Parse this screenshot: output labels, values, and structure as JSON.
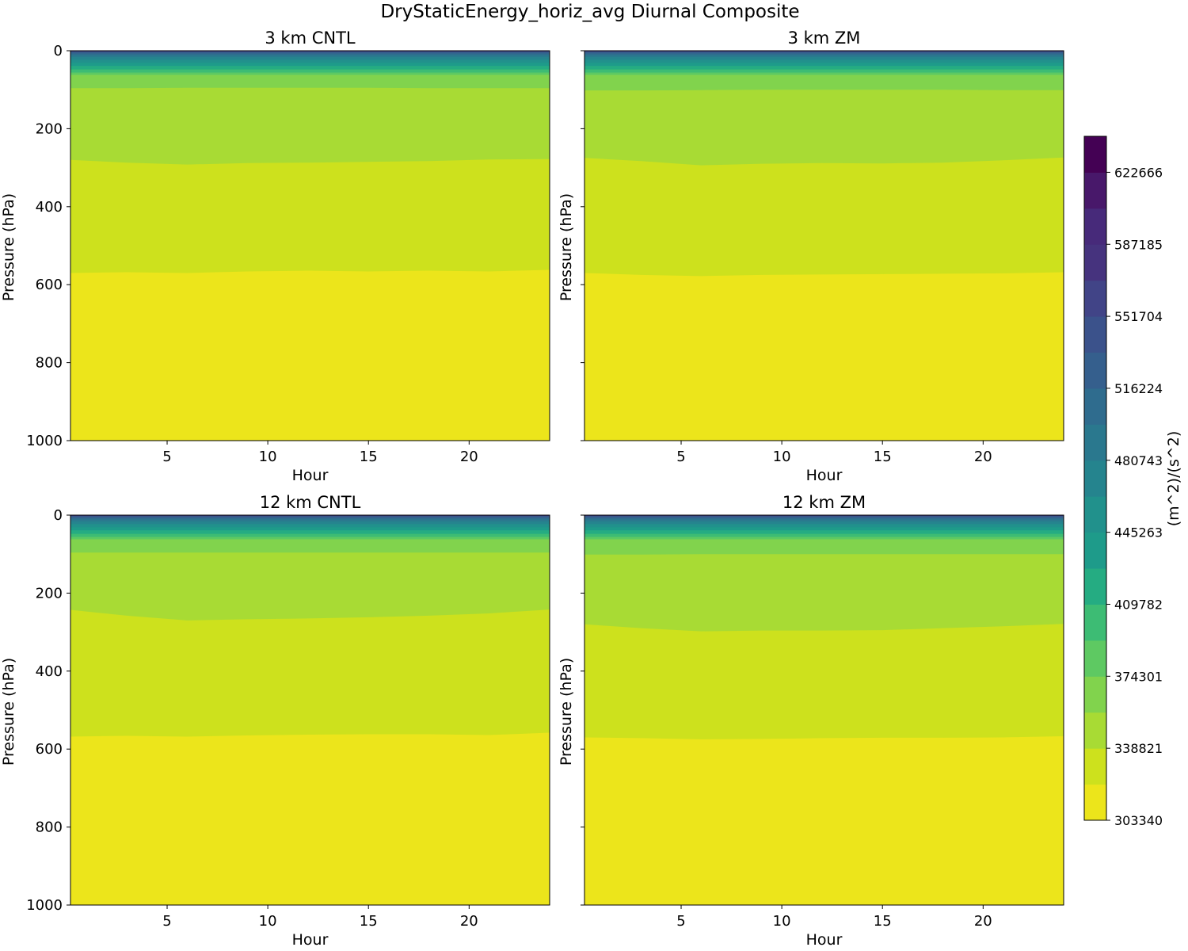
{
  "figure": {
    "title": "DryStaticEnergy_horiz_avg Diurnal Composite"
  },
  "chart_data": {
    "type": "heatmap",
    "title": "DryStaticEnergy_horiz_avg Diurnal Composite",
    "xlabel": "Hour",
    "ylabel": "Pressure (hPa)",
    "xlim": [
      0.2,
      24
    ],
    "ylim": [
      1000,
      0
    ],
    "x_ticks": [
      5,
      10,
      15,
      20
    ],
    "y_ticks": [
      0,
      200,
      400,
      600,
      800,
      1000
    ],
    "hours": [
      0.2,
      3,
      6,
      9,
      12,
      15,
      18,
      21,
      24
    ],
    "colorbar": {
      "label": "(m^2)/(s^2)",
      "min": 303340,
      "max": 640407,
      "step": 17740.4,
      "tick_values": [
        303340,
        338821,
        374301,
        409782,
        445263,
        480743,
        516224,
        551704,
        587185,
        622666
      ],
      "tick_labels": [
        "303340",
        "338821",
        "374301",
        "409782",
        "445263",
        "480743",
        "516224",
        "551704",
        "587185",
        "622666"
      ],
      "colors": [
        "#ece51b",
        "#cde11d",
        "#a8db34",
        "#81d34d",
        "#5ec962",
        "#3dbc74",
        "#25ac82",
        "#1e9b8a",
        "#21918c",
        "#25848e",
        "#2a788e",
        "#2f6c8e",
        "#355f8d",
        "#3b528b",
        "#414487",
        "#46337e",
        "#472a7a",
        "#48186a",
        "#440154"
      ]
    },
    "top_levels": [
      62,
      56,
      48,
      39,
      31,
      23,
      16,
      11,
      7,
      4,
      2
    ],
    "panels": [
      {
        "title": "3 km CNTL",
        "boundary_upper": [
          96,
          96,
          95,
          95,
          95,
          95,
          96,
          96,
          96
        ],
        "boundary_mid": [
          280,
          287,
          292,
          288,
          287,
          285,
          283,
          279,
          278
        ],
        "boundary_low": [
          570,
          568,
          570,
          566,
          564,
          566,
          564,
          566,
          562
        ]
      },
      {
        "title": "3 km ZM",
        "boundary_upper": [
          102,
          102,
          101,
          100,
          100,
          100,
          100,
          101,
          101
        ],
        "boundary_mid": [
          275,
          283,
          294,
          290,
          288,
          289,
          287,
          281,
          274
        ],
        "boundary_low": [
          570,
          575,
          578,
          575,
          574,
          573,
          572,
          571,
          568
        ]
      },
      {
        "title": "12 km CNTL",
        "boundary_upper": [
          96,
          96,
          96,
          96,
          96,
          96,
          96,
          96,
          96
        ],
        "boundary_mid": [
          243,
          258,
          270,
          267,
          265,
          262,
          258,
          252,
          242
        ],
        "boundary_low": [
          568,
          566,
          568,
          565,
          563,
          562,
          562,
          564,
          558
        ]
      },
      {
        "title": "12 km ZM",
        "boundary_upper": [
          101,
          101,
          100,
          100,
          100,
          100,
          100,
          100,
          100
        ],
        "boundary_mid": [
          280,
          290,
          298,
          296,
          296,
          295,
          290,
          285,
          279
        ],
        "boundary_low": [
          570,
          572,
          575,
          574,
          572,
          571,
          571,
          570,
          567
        ]
      }
    ]
  }
}
